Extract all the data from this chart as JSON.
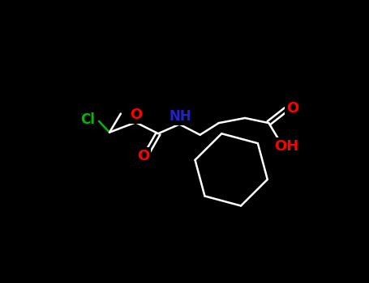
{
  "background_color": "#000000",
  "bond_color": "#ffffff",
  "atom_colors": {
    "Cl": "#00bb00",
    "O": "#ff0000",
    "N": "#2222cc",
    "C": "#ffffff"
  },
  "figsize": [
    4.55,
    3.5
  ],
  "dpi": 100
}
